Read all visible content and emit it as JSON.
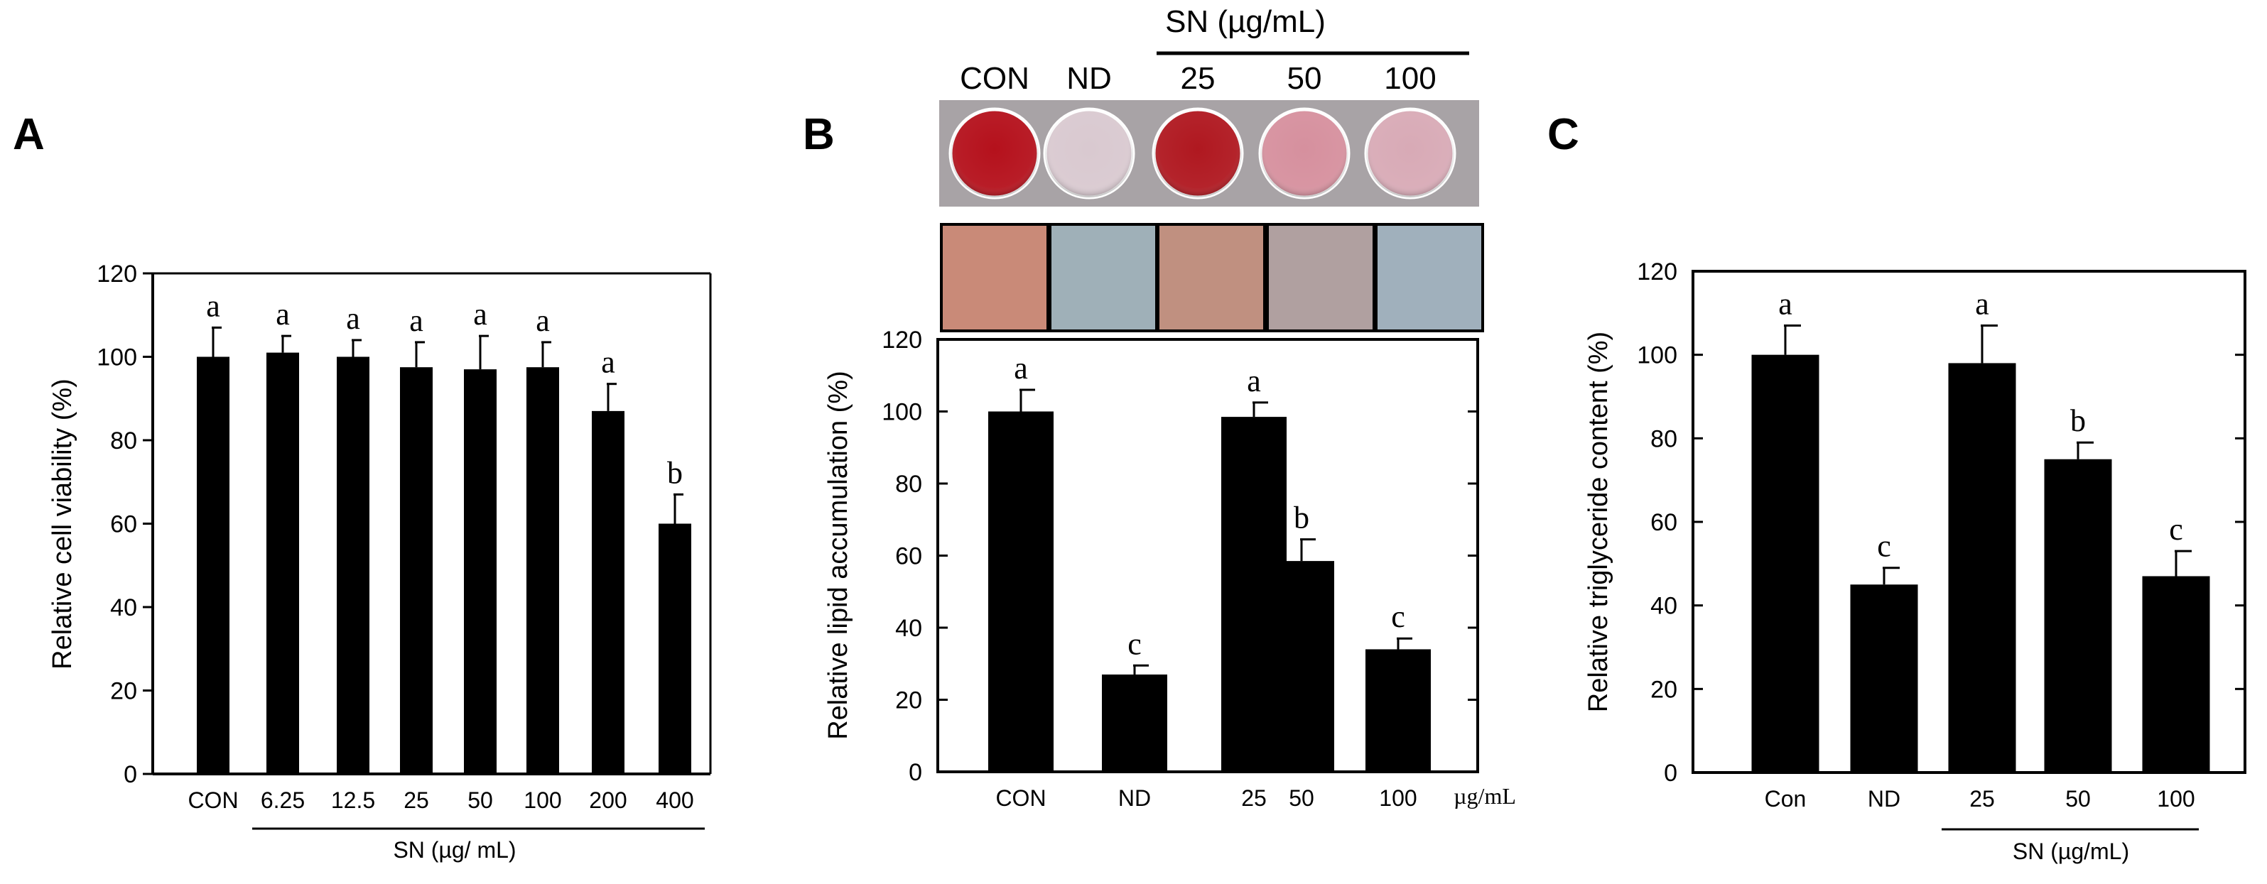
{
  "panels": {
    "A": {
      "label": "A"
    },
    "B": {
      "label": "B"
    },
    "C": {
      "label": "C"
    }
  },
  "staining": {
    "group_header": "SN (µg/mL)",
    "labels": [
      "CON",
      "ND",
      "25",
      "50",
      "100"
    ],
    "plate_colors": [
      "#b5111c",
      "#d9c9d0",
      "#b01820",
      "#d6909e",
      "#d8aab6"
    ],
    "micro_colors": [
      "#c98a78",
      "#9fb0b8",
      "#c09080",
      "#b0a0a0",
      "#a0b0bc"
    ]
  },
  "chart_data": [
    {
      "type": "bar",
      "panel": "A",
      "categories": [
        "CON",
        "6.25",
        "12.5",
        "25",
        "50",
        "100",
        "200",
        "400"
      ],
      "values": [
        100,
        101,
        100,
        97.5,
        97,
        97.5,
        87,
        60
      ],
      "errors": [
        7,
        4,
        4,
        6,
        8,
        6,
        6.5,
        7
      ],
      "significance": [
        "a",
        "a",
        "a",
        "a",
        "a",
        "a",
        "a",
        "b"
      ],
      "ylabel": "Relative cell viability (%)",
      "xlabel": "SN (µg/ mL)",
      "ylim": [
        0,
        120
      ],
      "yticks": [
        "0",
        "20",
        "40",
        "60",
        "80",
        "100",
        "120"
      ],
      "color": "#000000"
    },
    {
      "type": "bar",
      "panel": "B",
      "categories": [
        "CON",
        "ND",
        "25",
        "50",
        "100"
      ],
      "values": [
        100,
        27,
        98.5,
        58.5,
        34
      ],
      "errors": [
        6,
        2.5,
        4,
        6,
        3
      ],
      "significance": [
        "a",
        "c",
        "a",
        "b",
        "c"
      ],
      "ylabel": "Relative lipid accumulation (%)",
      "unit_label": "µg/mL",
      "ylim": [
        0,
        120
      ],
      "yticks": [
        "0",
        "20",
        "40",
        "60",
        "80",
        "100",
        "120"
      ],
      "color": "#000000"
    },
    {
      "type": "bar",
      "panel": "C",
      "categories": [
        "Con",
        "ND",
        "25",
        "50",
        "100"
      ],
      "values": [
        100,
        45,
        98,
        75,
        47
      ],
      "errors": [
        7,
        4,
        9,
        4,
        6
      ],
      "significance": [
        "a",
        "c",
        "a",
        "b",
        "c"
      ],
      "ylabel": "Relative triglyceride content (%)",
      "xlabel": "SN (µg/mL)",
      "ylim": [
        0,
        120
      ],
      "yticks": [
        "0",
        "20",
        "40",
        "60",
        "80",
        "100",
        "120"
      ],
      "color": "#000000"
    }
  ]
}
